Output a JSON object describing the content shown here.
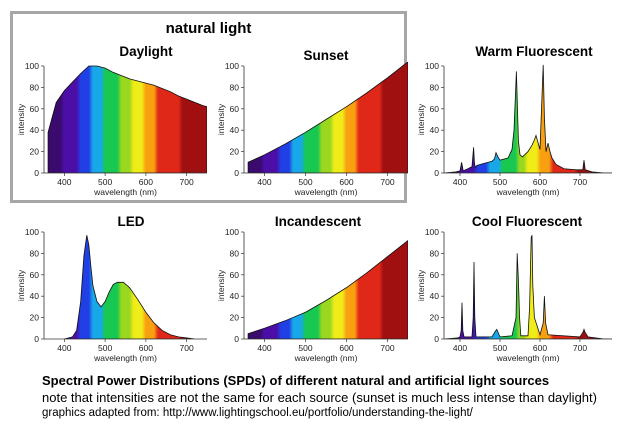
{
  "natural_group": {
    "title": "natural light"
  },
  "captions": {
    "line1": "Spectral Power Distributions (SPDs) of different natural and artificial light sources",
    "line2": "note that intensities are not the same for each source (sunset is much less intense than daylight)",
    "line3": "graphics adapted from: http://www.lightingschool.eu/portfolio/understanding-the-light/"
  },
  "chart_data": [
    {
      "id": "daylight",
      "type": "area",
      "title": "Daylight",
      "xlabel": "wavelength (nm)",
      "ylabel": "intensity",
      "xlim": [
        350,
        750
      ],
      "ylim": [
        0,
        100
      ],
      "xticks": [
        400,
        500,
        600,
        700
      ],
      "yticks": [
        0,
        20,
        40,
        60,
        80,
        100
      ],
      "x": [
        360,
        380,
        400,
        420,
        440,
        460,
        480,
        500,
        520,
        540,
        560,
        580,
        600,
        620,
        640,
        660,
        680,
        700,
        720,
        740,
        750
      ],
      "y": [
        38,
        66,
        77,
        85,
        93,
        100,
        100,
        98,
        94,
        91,
        88,
        86,
        84,
        82,
        79,
        76,
        72,
        69,
        66,
        63,
        62
      ]
    },
    {
      "id": "sunset",
      "type": "area",
      "title": "Sunset",
      "xlabel": "wavelength (nm)",
      "ylabel": "intensity",
      "xlim": [
        350,
        750
      ],
      "ylim": [
        0,
        100
      ],
      "xticks": [
        400,
        500,
        600,
        700
      ],
      "yticks": [
        0,
        20,
        40,
        60,
        80,
        100
      ],
      "x": [
        360,
        400,
        450,
        500,
        550,
        600,
        650,
        700,
        750
      ],
      "y": [
        10,
        17,
        27,
        38,
        50,
        62,
        75,
        89,
        104
      ]
    },
    {
      "id": "warm-fluorescent",
      "type": "area",
      "title": "Warm Fluorescent",
      "xlabel": "wavelength (nm)",
      "ylabel": "intensity",
      "xlim": [
        360,
        780
      ],
      "ylim": [
        0,
        100
      ],
      "xticks": [
        400,
        500,
        600,
        700
      ],
      "yticks": [
        0,
        20,
        40,
        60,
        80,
        100
      ],
      "x": [
        360,
        390,
        400,
        404,
        408,
        420,
        430,
        434,
        436,
        438,
        442,
        460,
        480,
        486,
        490,
        495,
        500,
        520,
        530,
        535,
        541,
        546,
        550,
        556,
        570,
        580,
        585,
        590,
        600,
        604,
        608,
        611,
        615,
        620,
        625,
        630,
        640,
        660,
        690,
        707,
        710,
        713,
        730,
        760,
        780
      ],
      "y": [
        0,
        1,
        2,
        10,
        2,
        4,
        6,
        24,
        10,
        5,
        7,
        9,
        11,
        13,
        19,
        15,
        12,
        14,
        22,
        40,
        95,
        30,
        17,
        15,
        20,
        26,
        30,
        35,
        22,
        62,
        101,
        52,
        20,
        28,
        20,
        14,
        8,
        4,
        3,
        3,
        12,
        3,
        1,
        0,
        0
      ]
    },
    {
      "id": "led",
      "type": "area",
      "title": "LED",
      "xlabel": "wavelength (nm)",
      "ylabel": "intensity",
      "xlim": [
        350,
        750
      ],
      "ylim": [
        0,
        100
      ],
      "xticks": [
        400,
        500,
        600,
        700
      ],
      "yticks": [
        0,
        20,
        40,
        60,
        80,
        100
      ],
      "x": [
        400,
        420,
        430,
        440,
        448,
        455,
        460,
        465,
        470,
        480,
        490,
        500,
        510,
        520,
        530,
        545,
        560,
        580,
        600,
        620,
        640,
        660,
        680,
        700,
        720
      ],
      "y": [
        0,
        2,
        8,
        35,
        78,
        97,
        88,
        68,
        50,
        35,
        30,
        35,
        44,
        51,
        53,
        53,
        48,
        37,
        25,
        15,
        8,
        4,
        2,
        1,
        0
      ]
    },
    {
      "id": "incandescent",
      "type": "area",
      "title": "Incandescent",
      "xlabel": "wavelength (nm)",
      "ylabel": "intensity",
      "xlim": [
        350,
        750
      ],
      "ylim": [
        0,
        100
      ],
      "xticks": [
        400,
        500,
        600,
        700
      ],
      "yticks": [
        0,
        20,
        40,
        60,
        80,
        100
      ],
      "x": [
        360,
        400,
        450,
        500,
        550,
        600,
        650,
        700,
        750
      ],
      "y": [
        5,
        10,
        17,
        25,
        36,
        48,
        62,
        77,
        92
      ]
    },
    {
      "id": "cool-fluorescent",
      "type": "area",
      "title": "Cool Fluorescent",
      "xlabel": "wavelength (nm)",
      "ylabel": "intensity",
      "xlim": [
        360,
        780
      ],
      "ylim": [
        0,
        100
      ],
      "xticks": [
        400,
        500,
        600,
        700
      ],
      "yticks": [
        0,
        20,
        40,
        60,
        80,
        100
      ],
      "x": [
        360,
        395,
        400,
        403,
        405,
        407,
        410,
        430,
        433,
        435,
        437,
        440,
        480,
        488,
        492,
        500,
        530,
        540,
        543,
        546,
        549,
        552,
        570,
        574,
        578,
        580,
        582,
        586,
        600,
        608,
        611,
        614,
        620,
        700,
        707,
        710,
        713,
        720,
        760,
        780
      ],
      "y": [
        0,
        1,
        2,
        8,
        34,
        8,
        2,
        2,
        20,
        72,
        20,
        2,
        2,
        7,
        9,
        2,
        3,
        20,
        80,
        55,
        20,
        3,
        3,
        30,
        95,
        97,
        50,
        20,
        4,
        15,
        40,
        15,
        4,
        2,
        6,
        9,
        6,
        2,
        0,
        0
      ]
    }
  ]
}
